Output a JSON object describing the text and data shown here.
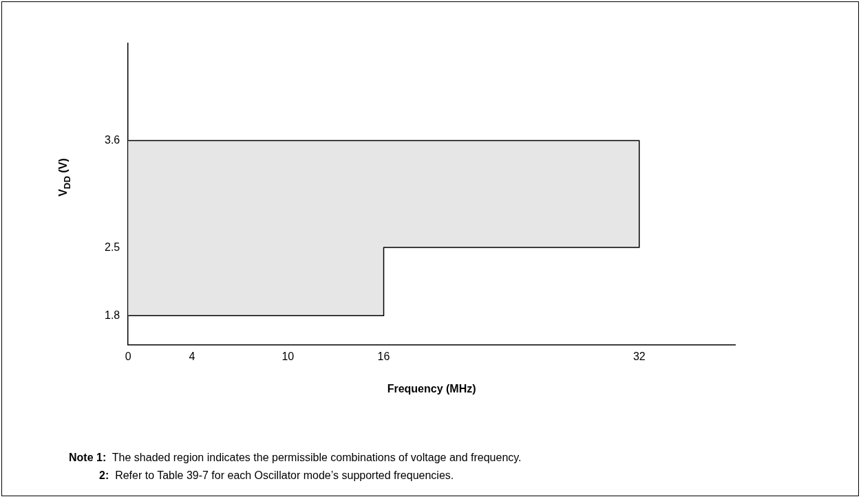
{
  "chart_data": {
    "type": "area",
    "xlabel": "Frequency (MHz)",
    "ylabel": "V$_{DD}$ (V)",
    "xlim": [
      0,
      38
    ],
    "xticks": [
      0,
      4,
      10,
      16,
      32
    ],
    "ylim": [
      1.5,
      4.6
    ],
    "yticks": [
      1.8,
      2.5,
      3.6
    ],
    "grid": false,
    "legend": false,
    "series": [
      {
        "color": "#e6e6e6",
        "x": [
          0,
          16,
          16,
          32,
          32
        ],
        "values": [
          3.6,
          3.6,
          3.6,
          3.6,
          2.5
        ]
      },
      {
        "type": "line",
        "color": "#000000",
        "x": [
          0,
          16,
          16,
          32
        ],
        "values": [
          1.8,
          1.8,
          2.5,
          2.5
        ]
      }
    ],
    "annotations": [
      "Note 1:  The shaded region indicates the permissible combinations of voltage and frequency.",
      "2:  Refer to Table 39-7 for each Oscillator mode’s supported frequencies."
    ]
  }
}
